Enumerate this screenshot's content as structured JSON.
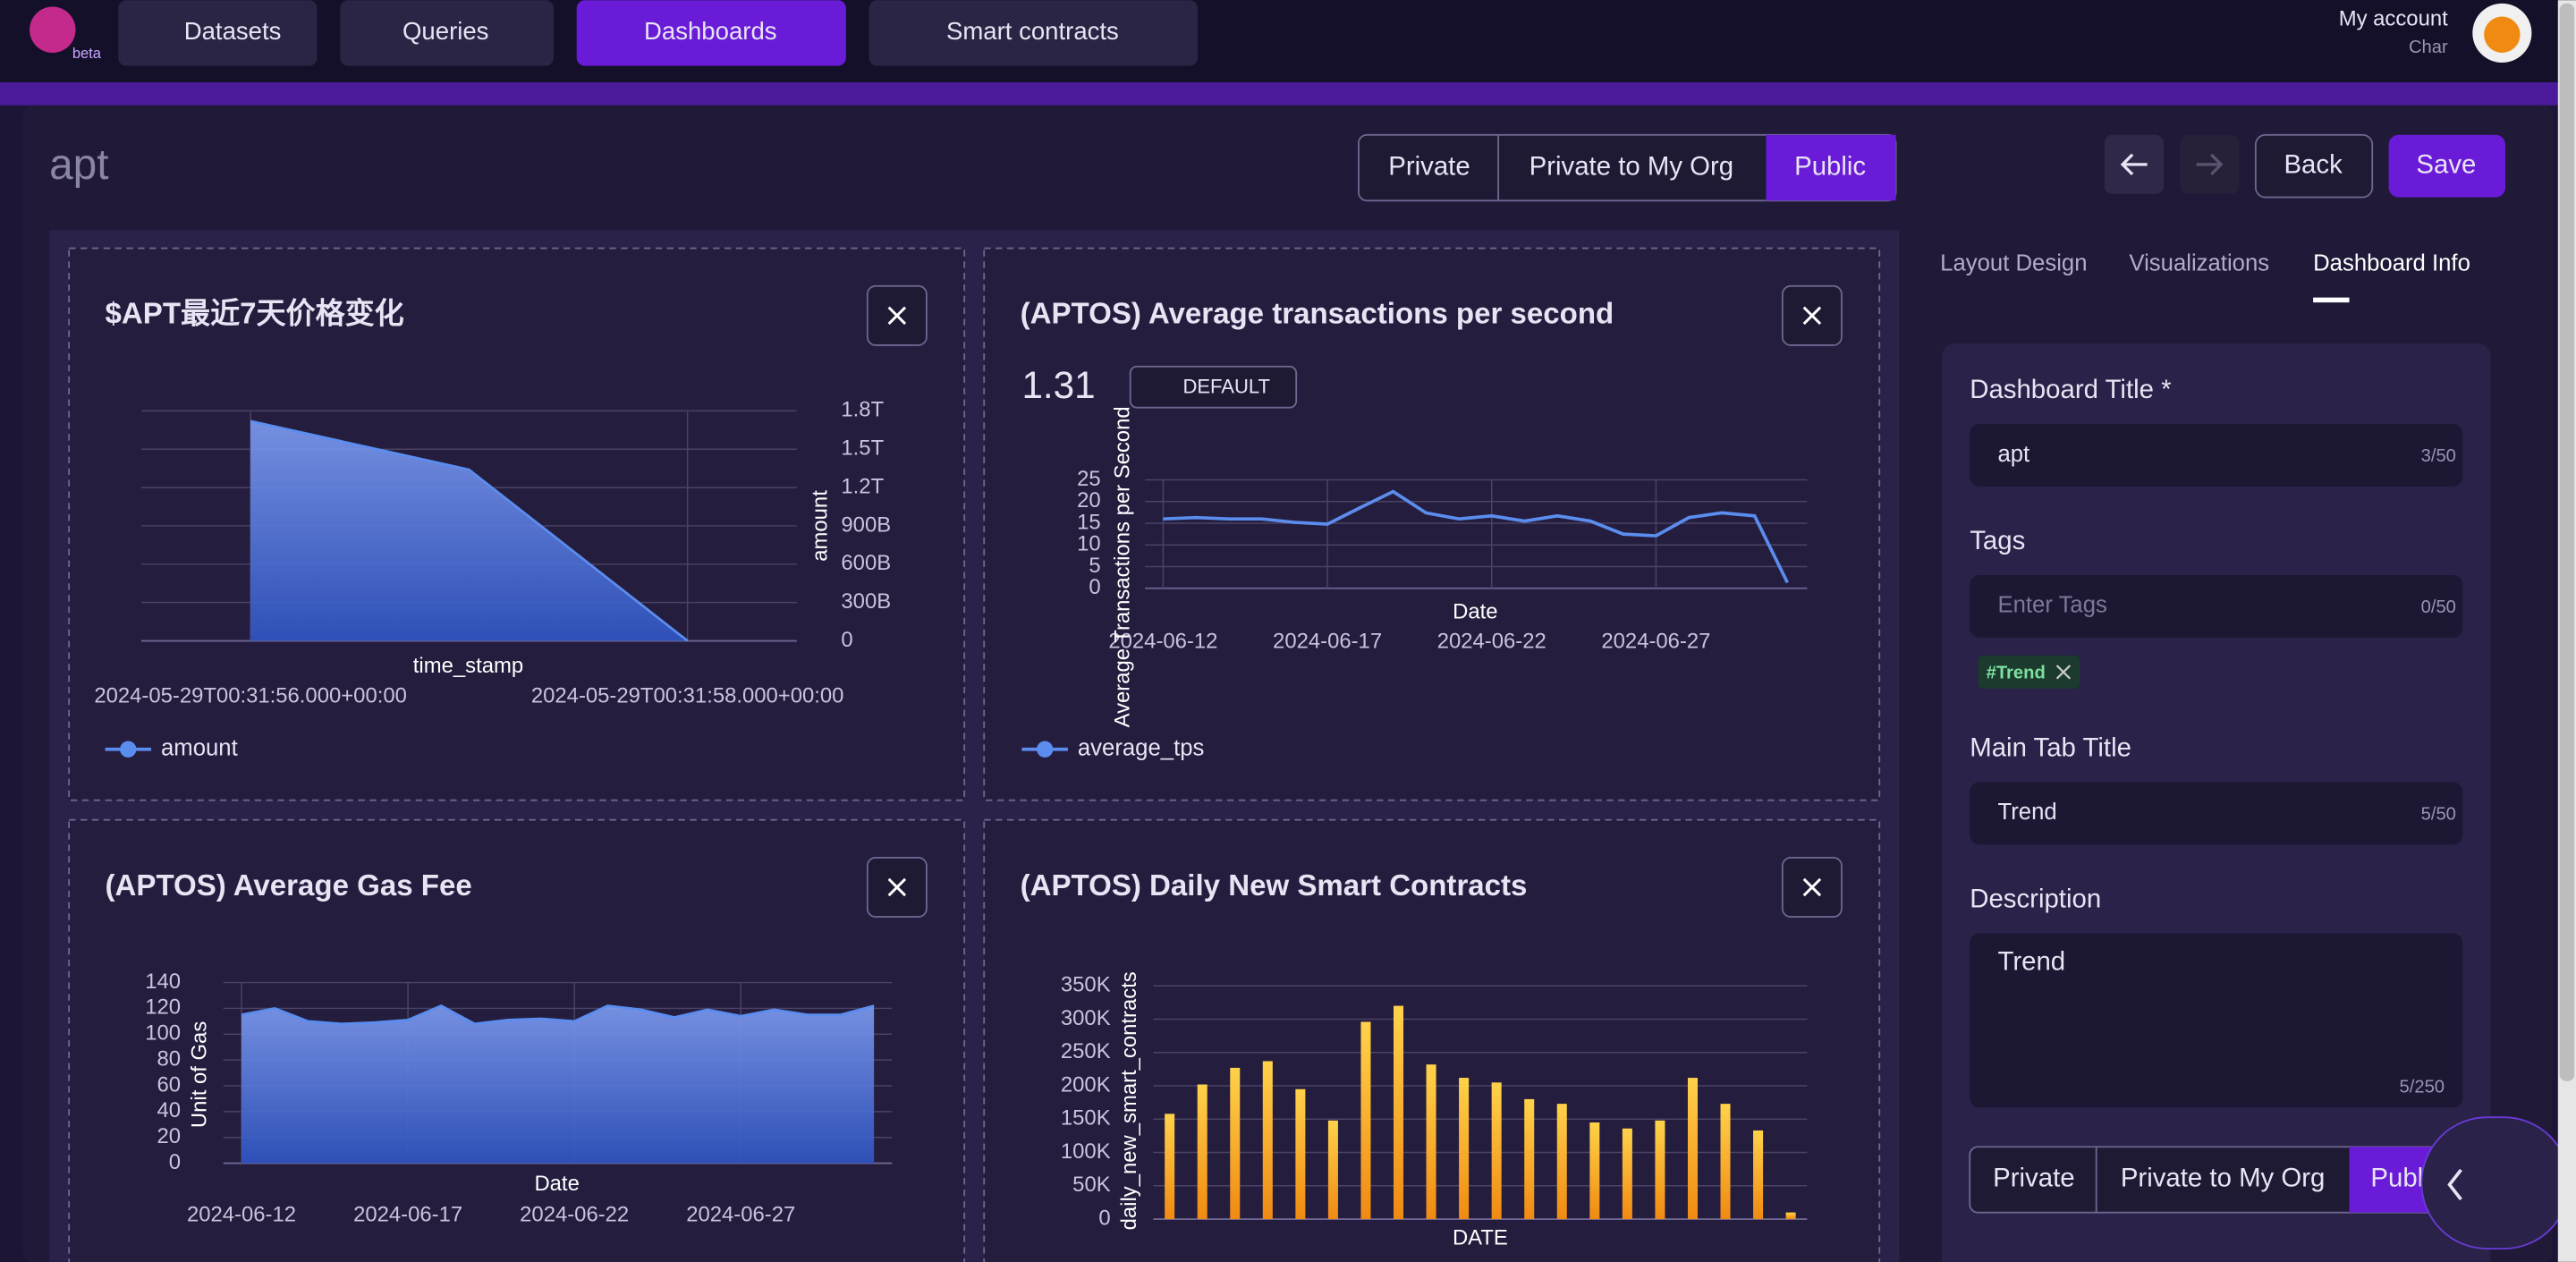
{
  "nav": {
    "logo_badge": "beta",
    "items": [
      "Datasets",
      "Queries",
      "Dashboards",
      "Smart contracts"
    ],
    "account": "My account",
    "user": "Char"
  },
  "header": {
    "title": "apt",
    "visibility": [
      "Private",
      "Private to My Org",
      "Public"
    ],
    "actions": [
      "Back",
      "Save"
    ]
  },
  "side_panel": {
    "tabs": [
      "Layout Design",
      "Visualizations",
      "Dashboard Info"
    ],
    "fields": [
      {
        "label": "Dashboard Title *",
        "value": "apt",
        "counter": "3/50"
      },
      {
        "label": "Tags",
        "placeholder": "Enter Tags",
        "counter": "0/50",
        "tags": [
          "#Trend"
        ]
      },
      {
        "label": "Main Tab Title",
        "value": "Trend",
        "counter": "5/50"
      },
      {
        "label": "Description",
        "value": "Trend",
        "counter": "5/250"
      }
    ],
    "visibility": [
      "Private",
      "Private to My Org",
      "Public"
    ]
  },
  "widgets": [
    {
      "title": "$APT最近7天价格变化",
      "chart": {
        "type": "area",
        "y_axis_position": "right",
        "x_label": "time_stamp",
        "y_label": "amount",
        "categories": [
          "2024-05-29T00:31:56.000+00:00",
          null,
          "2024-05-29T00:31:58.000+00:00"
        ],
        "series": [
          {
            "name": "amount",
            "color": "#5b8def",
            "values": [
              1720000000000,
              1340000000000,
              0
            ]
          }
        ],
        "ylim": [
          0,
          1800000000000
        ],
        "yticks": [
          0,
          {
            "value": 300000000000,
            "label": "300B"
          },
          {
            "value": 600000000000,
            "label": "600B"
          },
          {
            "value": 900000000000,
            "label": "900B"
          },
          {
            "value": 1200000000000,
            "label": "1.2T"
          },
          {
            "value": 1500000000000,
            "label": "1.5T"
          },
          {
            "value": 1800000000000,
            "label": "1.8T"
          }
        ],
        "grid": true,
        "legend": "bottom-left"
      }
    },
    {
      "title": "(APTOS) Average transactions per second",
      "big_number": "1.31",
      "format_button": "DEFAULT",
      "chart": {
        "type": "line",
        "x_label": "Date",
        "y_label": "Average Transactions per Second",
        "categories": [
          "2024-06-12",
          null,
          null,
          null,
          null,
          "2024-06-17",
          null,
          null,
          null,
          null,
          "2024-06-22",
          null,
          null,
          null,
          null,
          "2024-06-27",
          null,
          null,
          null,
          null
        ],
        "series": [
          {
            "name": "average_tps",
            "color": "#5b8def",
            "values": [
              16,
              16.3,
              16,
              16,
              15.2,
              14.8,
              18.6,
              22.3,
              17.4,
              16,
              16.7,
              15.5,
              16.7,
              15.5,
              12.5,
              12.1,
              16.3,
              17.4,
              16.7,
              1.31
            ]
          }
        ],
        "ylim": [
          0,
          25
        ],
        "yticks": [
          0,
          5,
          10,
          15,
          20,
          25
        ],
        "grid": true,
        "legend": "bottom-left"
      }
    },
    {
      "title": "(APTOS) Average Gas Fee",
      "chart": {
        "type": "area",
        "x_label": "Date",
        "y_label": "Unit of Gas",
        "categories": [
          "2024-06-12",
          null,
          null,
          null,
          null,
          "2024-06-17",
          null,
          null,
          null,
          null,
          "2024-06-22",
          null,
          null,
          null,
          null,
          "2024-06-27",
          null,
          null,
          null,
          null
        ],
        "series": [
          {
            "name": "Unit of Gas",
            "color": "#5b8def",
            "values": [
              115,
              120,
              110,
              108,
              109,
              111,
              122,
              108,
              111,
              112,
              110,
              122,
              119,
              113,
              119,
              114,
              119,
              115,
              115,
              122
            ]
          }
        ],
        "ylim": [
          0,
          140
        ],
        "yticks": [
          0,
          20,
          40,
          60,
          80,
          100,
          120,
          140
        ],
        "grid": true
      }
    },
    {
      "title": "(APTOS) Daily New Smart Contracts",
      "chart": {
        "type": "bar",
        "x_label": "DATE",
        "y_label": "daily_new_smart_contracts",
        "categories": [
          null,
          null,
          null,
          null,
          null,
          null,
          null,
          null,
          null,
          null,
          null,
          null,
          null,
          null,
          null,
          null,
          null,
          null,
          null,
          null
        ],
        "series": [
          {
            "name": "daily_new_smart_contracts",
            "color": "#f5b324",
            "values": [
              158000,
              202000,
              227000,
              237000,
              195000,
              148000,
              296000,
              320000,
              232000,
              212000,
              205000,
              180000,
              173000,
              145000,
              136000,
              148000,
              212000,
              173000,
              133000,
              10000
            ]
          }
        ],
        "ylim": [
          0,
          350000
        ],
        "yticks": [
          0,
          {
            "value": 50000,
            "label": "50K"
          },
          {
            "value": 100000,
            "label": "100K"
          },
          {
            "value": 150000,
            "label": "150K"
          },
          {
            "value": 200000,
            "label": "200K"
          },
          {
            "value": 250000,
            "label": "250K"
          },
          {
            "value": 300000,
            "label": "300K"
          },
          {
            "value": 350000,
            "label": "350K"
          }
        ],
        "grid": true
      }
    }
  ]
}
